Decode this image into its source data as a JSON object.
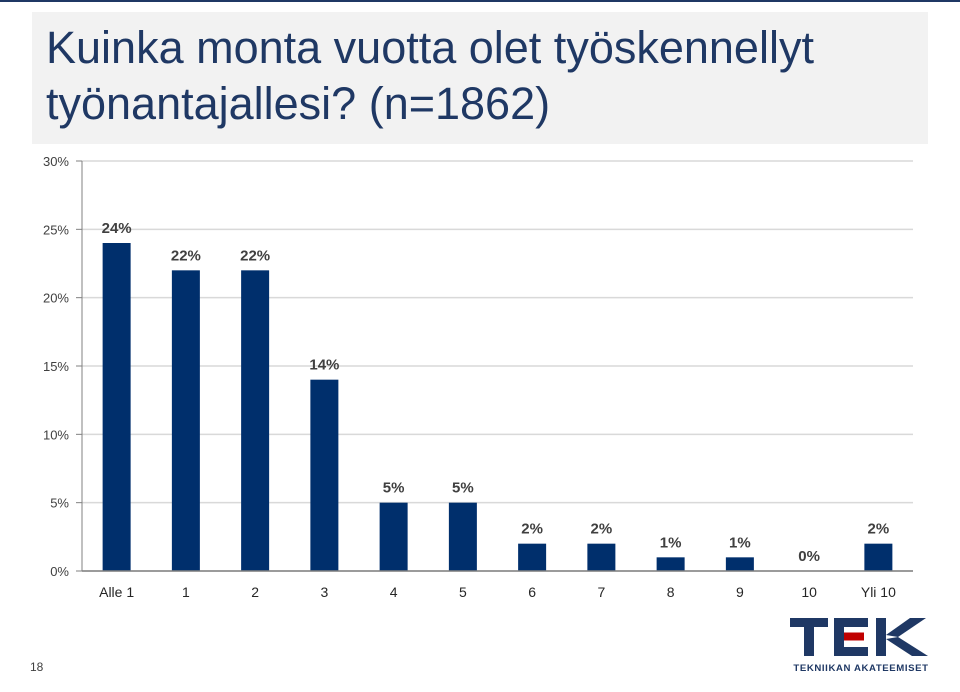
{
  "title": "Kuinka monta vuotta olet työskennellyt työnantajallesi? (n=1862)",
  "page_number": "18",
  "logo": {
    "text": "TEK",
    "subtitle": "TEKNIIKAN AKATEEMISET"
  },
  "colors": {
    "bar": "#002f6c",
    "title": "#1f3864",
    "logo_dark": "#1f3864",
    "logo_red": "#c00000",
    "grid": "#d9d9d9"
  },
  "chart_data": {
    "type": "bar",
    "categories": [
      "Alle 1",
      "1",
      "2",
      "3",
      "4",
      "5",
      "6",
      "7",
      "8",
      "9",
      "10",
      "Yli 10"
    ],
    "values": [
      24,
      22,
      22,
      14,
      5,
      5,
      2,
      2,
      1,
      1,
      0,
      2
    ],
    "data_labels": [
      "24%",
      "22%",
      "22%",
      "14%",
      "5%",
      "5%",
      "2%",
      "2%",
      "1%",
      "1%",
      "0%",
      "2%"
    ],
    "ylim": [
      0,
      30
    ],
    "yticks": [
      0,
      5,
      10,
      15,
      20,
      25,
      30
    ],
    "ytick_labels": [
      "0%",
      "5%",
      "10%",
      "15%",
      "20%",
      "25%",
      "30%"
    ],
    "grid": true,
    "xlabel": "",
    "ylabel": ""
  }
}
